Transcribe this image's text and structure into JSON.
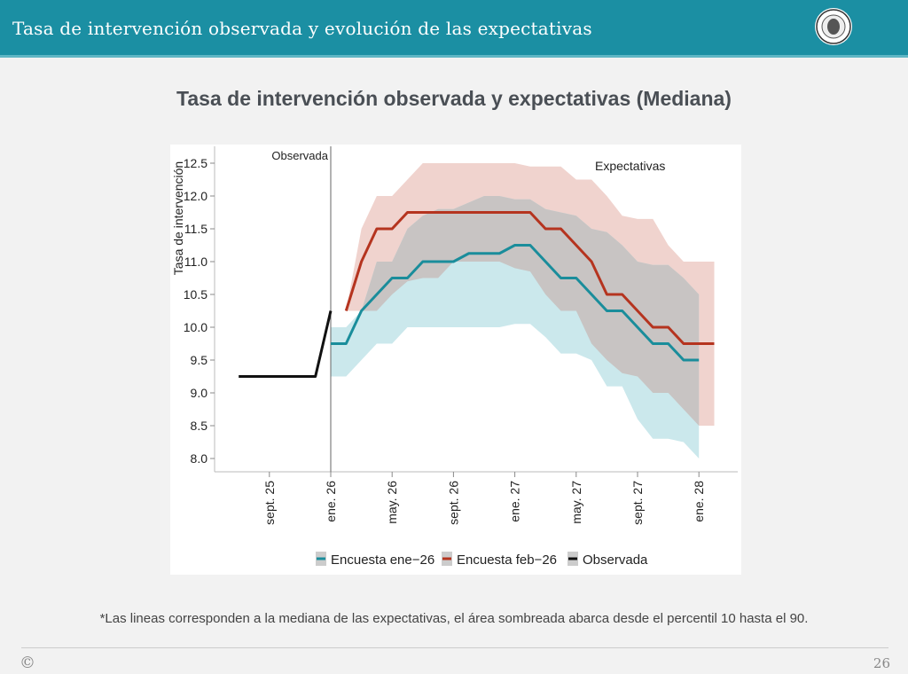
{
  "header": {
    "title": "Tasa de intervención observada y evolución de las expectativas",
    "logo_text": "BANCO DE LA REPÚBLICA COLOMBIA"
  },
  "slide": {
    "title": "Tasa de intervención observada y expectativas (Mediana)",
    "note": "*Las lineas corresponden a la mediana de las expectativas, el área sombreada abarca desde el percentil 10 hasta el 90.",
    "copyright": "©",
    "page": "26"
  },
  "chart_data": {
    "type": "line",
    "title": "",
    "ylabel": "Tasa de intervención",
    "xlabel": "",
    "ylim": [
      7.9,
      12.6
    ],
    "yticks": [
      "8.0",
      "8.5",
      "9.0",
      "9.5",
      "10.0",
      "10.5",
      "11.0",
      "11.5",
      "12.0",
      "12.5"
    ],
    "xticks": [
      {
        "month": "2025-09",
        "label": "sept. 25"
      },
      {
        "month": "2026-01",
        "label": "ene. 26"
      },
      {
        "month": "2026-05",
        "label": "may. 26"
      },
      {
        "month": "2026-09",
        "label": "sept. 26"
      },
      {
        "month": "2027-01",
        "label": "ene. 27"
      },
      {
        "month": "2027-05",
        "label": "may. 27"
      },
      {
        "month": "2027-09",
        "label": "sept. 27"
      },
      {
        "month": "2028-01",
        "label": "ene. 28"
      }
    ],
    "annotations": {
      "left": "Observada",
      "right": "Expectativas",
      "divider_month": "2026-01"
    },
    "grid": false,
    "legend_position": "bottom",
    "months": [
      "2025-07",
      "2025-08",
      "2025-09",
      "2025-10",
      "2025-11",
      "2025-12",
      "2026-01",
      "2026-02",
      "2026-03",
      "2026-04",
      "2026-05",
      "2026-06",
      "2026-07",
      "2026-08",
      "2026-09",
      "2026-10",
      "2026-11",
      "2026-12",
      "2027-01",
      "2027-02",
      "2027-03",
      "2027-04",
      "2027-05",
      "2027-06",
      "2027-07",
      "2027-08",
      "2027-09",
      "2027-10",
      "2027-11",
      "2027-12",
      "2028-01",
      "2028-02"
    ],
    "series": [
      {
        "name": "Encuesta ene−26",
        "color": "#1a8d9b",
        "band_color": "#cbe8ec",
        "median": [
          null,
          null,
          null,
          null,
          null,
          null,
          9.75,
          9.75,
          10.25,
          10.5,
          10.75,
          10.75,
          11.0,
          11.0,
          11.0,
          11.125,
          11.125,
          11.125,
          11.25,
          11.25,
          11.0,
          10.75,
          10.75,
          10.5,
          10.25,
          10.25,
          10.0,
          9.75,
          9.75,
          9.5,
          9.5,
          null
        ],
        "p10": [
          null,
          null,
          null,
          null,
          null,
          null,
          9.25,
          9.25,
          9.5,
          9.75,
          9.75,
          10.0,
          10.0,
          10.0,
          10.0,
          10.0,
          10.0,
          10.0,
          10.05,
          10.05,
          9.85,
          9.6,
          9.6,
          9.5,
          9.1,
          9.1,
          8.6,
          8.3,
          8.3,
          8.25,
          8.0,
          null
        ],
        "p90": [
          null,
          null,
          null,
          null,
          null,
          null,
          10.0,
          10.0,
          10.25,
          11.0,
          11.0,
          11.5,
          11.7,
          11.8,
          11.8,
          11.9,
          12.0,
          12.0,
          11.95,
          11.95,
          11.8,
          11.75,
          11.7,
          11.5,
          11.45,
          11.25,
          11.0,
          10.95,
          10.95,
          10.75,
          10.5,
          null
        ]
      },
      {
        "name": "Encuesta feb−26",
        "color": "#b5341f",
        "band_color": "#f0d3ce",
        "median": [
          null,
          null,
          null,
          null,
          null,
          null,
          null,
          10.25,
          11.0,
          11.5,
          11.5,
          11.75,
          11.75,
          11.75,
          11.75,
          11.75,
          11.75,
          11.75,
          11.75,
          11.75,
          11.5,
          11.5,
          11.25,
          11.0,
          10.5,
          10.5,
          10.25,
          10.0,
          10.0,
          9.75,
          9.75,
          9.75
        ],
        "p10": [
          null,
          null,
          null,
          null,
          null,
          null,
          null,
          10.25,
          10.25,
          10.25,
          10.5,
          10.7,
          10.75,
          10.75,
          11.0,
          11.0,
          11.0,
          11.0,
          10.9,
          10.85,
          10.5,
          10.25,
          10.25,
          9.75,
          9.5,
          9.3,
          9.25,
          9.0,
          9.0,
          8.75,
          8.5,
          8.5
        ],
        "p90": [
          null,
          null,
          null,
          null,
          null,
          null,
          null,
          10.25,
          11.5,
          12.0,
          12.0,
          12.25,
          12.5,
          12.5,
          12.5,
          12.5,
          12.5,
          12.5,
          12.5,
          12.45,
          12.45,
          12.45,
          12.25,
          12.25,
          12.0,
          11.7,
          11.65,
          11.65,
          11.25,
          11.0,
          11.0,
          11.0
        ]
      },
      {
        "name": "Observada",
        "color": "#111111",
        "median": [
          9.25,
          9.25,
          9.25,
          9.25,
          9.25,
          9.25,
          10.25,
          null,
          null,
          null,
          null,
          null,
          null,
          null,
          null,
          null,
          null,
          null,
          null,
          null,
          null,
          null,
          null,
          null,
          null,
          null,
          null,
          null,
          null,
          null,
          null,
          null
        ]
      }
    ],
    "overlap_color": "#c8c4c3"
  }
}
